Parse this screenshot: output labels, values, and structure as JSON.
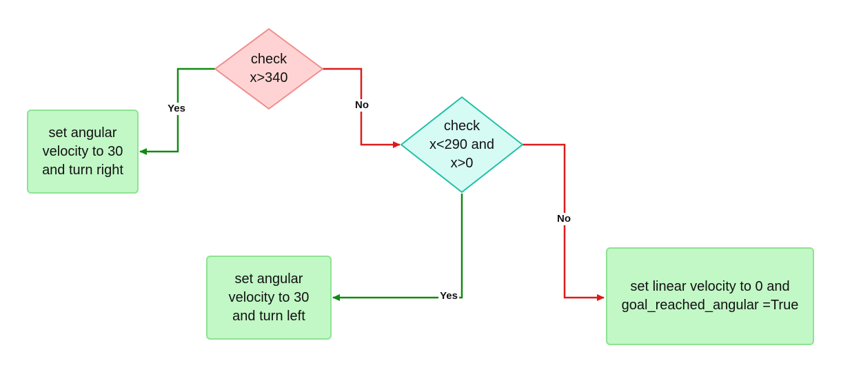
{
  "nodes": {
    "check_gt_340": "check\nx>340",
    "check_range": "check\nx<290 and\nx>0",
    "turn_right": "set angular\nvelocity to 30\nand turn right",
    "turn_left": "set angular\nvelocity to 30\nand turn left",
    "stop": "set linear velocity to 0 and\ngoal_reached_angular =True"
  },
  "edges": {
    "gt_340_yes": "Yes",
    "gt_340_no": "No",
    "range_yes": "Yes",
    "range_no": "No"
  },
  "colors": {
    "decision_red_fill": "#ffd3d3",
    "decision_red_stroke": "#f08c8c",
    "decision_teal_fill": "#d6faf4",
    "decision_teal_stroke": "#1fbfa6",
    "process_fill": "#c2f7c6",
    "process_stroke": "#8ee293",
    "yes_edge": "#108a10",
    "no_edge": "#dd1a1a"
  }
}
